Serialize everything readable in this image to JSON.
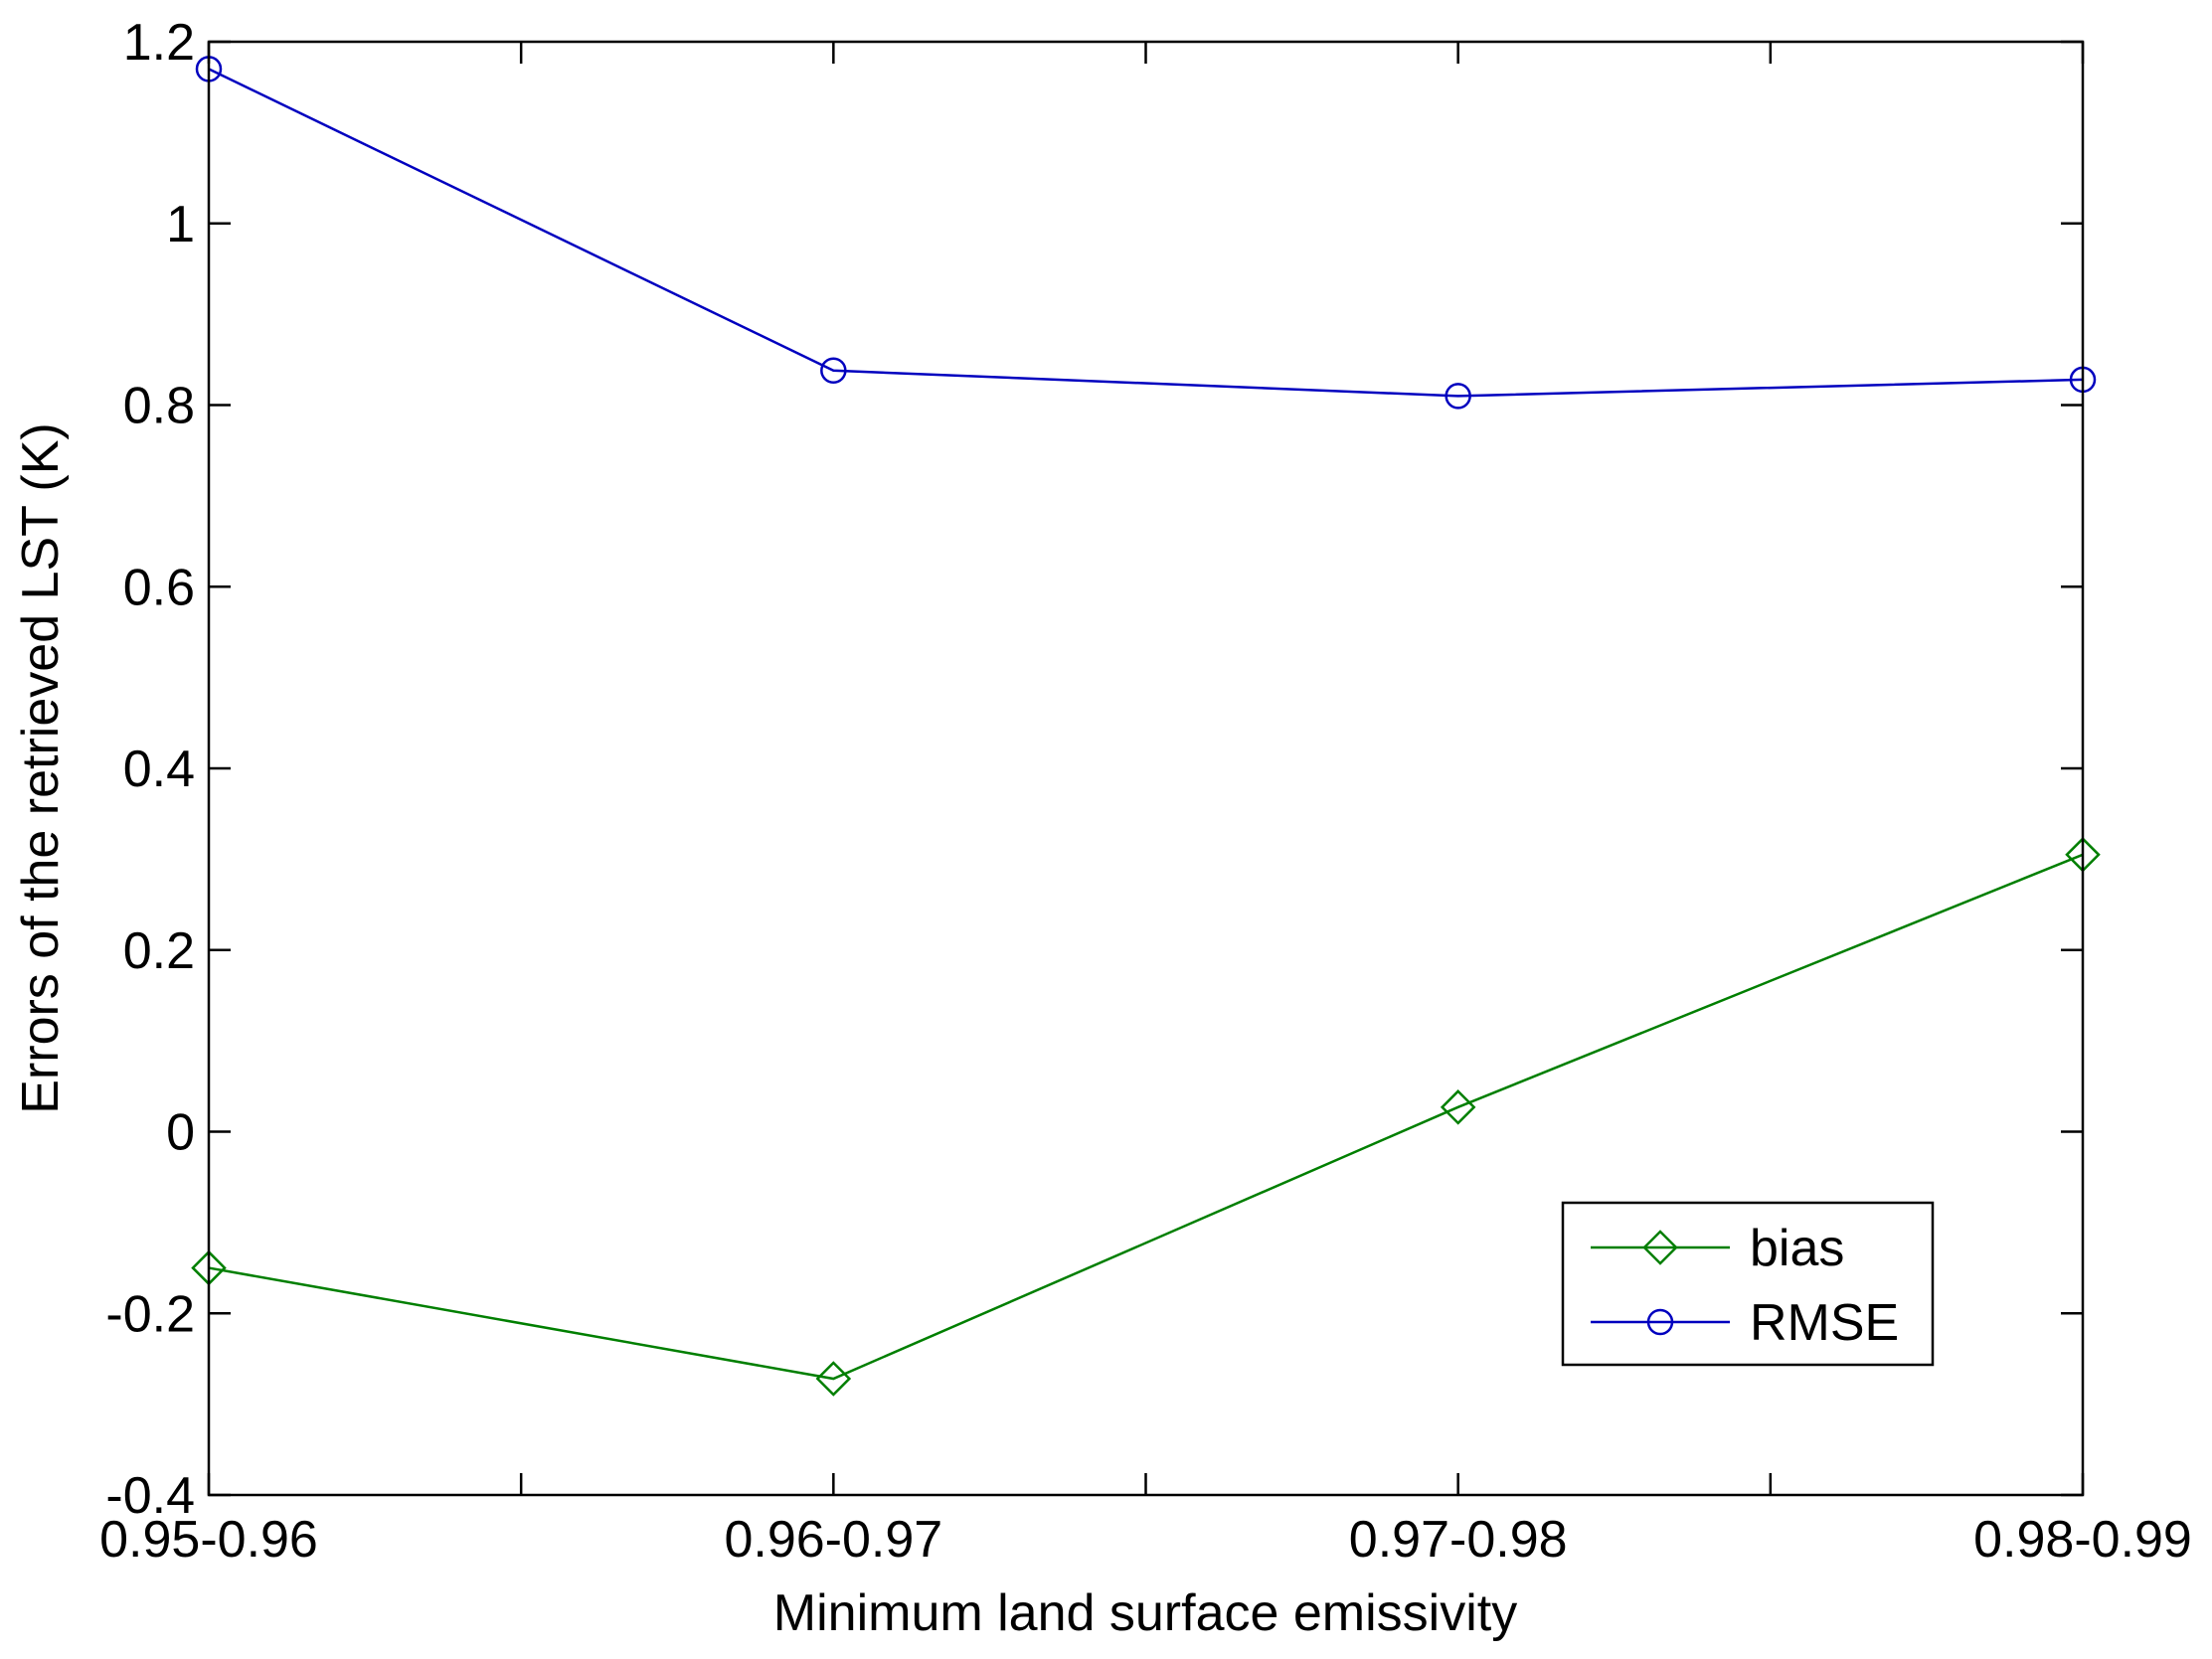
{
  "chart_data": {
    "type": "line",
    "categories": [
      "0.95-0.96",
      "0.96-0.97",
      "0.97-0.98",
      "0.98-0.99"
    ],
    "x_minor_ticks": [
      0.5,
      1.5,
      2.5
    ],
    "series": [
      {
        "name": "bias",
        "values": [
          -0.15,
          -0.272,
          0.027,
          0.305
        ],
        "color": "#007f00",
        "marker": "diamond"
      },
      {
        "name": "RMSE",
        "values": [
          1.17,
          0.838,
          0.81,
          0.828
        ],
        "color": "#0000bf",
        "marker": "circle"
      }
    ],
    "title": "",
    "xlabel": "Minimum land surface emissivity",
    "ylabel": "Errors of the retrieved LST (K)",
    "ylim": [
      -0.4,
      1.2
    ],
    "yticks": [
      -0.4,
      -0.2,
      0,
      0.2,
      0.4,
      0.6,
      0.8,
      1,
      1.2
    ],
    "ytick_labels": [
      "-0.4",
      "-0.2",
      "0",
      "0.2",
      "0.4",
      "0.6",
      "0.8",
      "1",
      "1.2"
    ],
    "grid": false,
    "legend_position": "bottom-right"
  }
}
